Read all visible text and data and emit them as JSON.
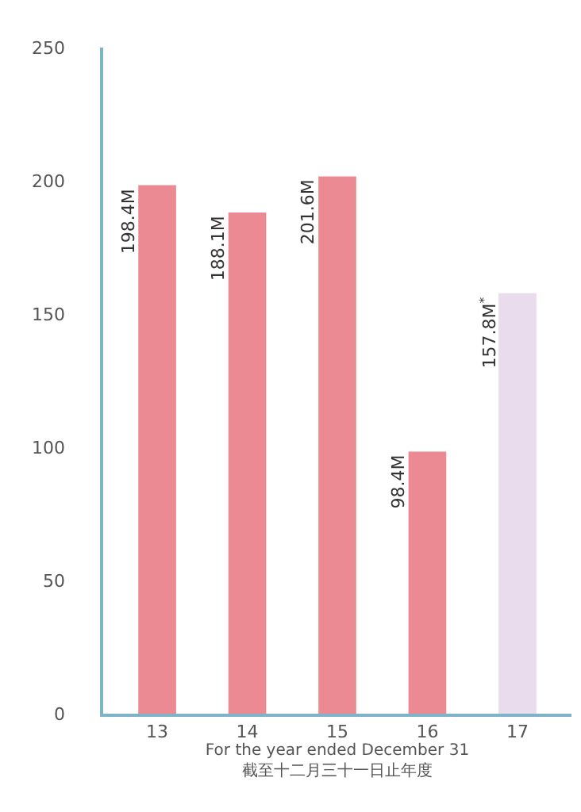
{
  "chart_data": {
    "type": "bar",
    "xlabel": "For the year ended December 31\n截至十二月三十一日止年度",
    "categories": [
      "13",
      "14",
      "15",
      "16",
      "17"
    ],
    "values": [
      198.4,
      188.1,
      201.6,
      98.4,
      157.8
    ],
    "colors": [
      "#eb8a92",
      "#eb8a92",
      "#eb8a92",
      "#eb8a92",
      "#e9dcec"
    ],
    "value_labels": [
      "198.4M",
      "188.1M",
      "201.6M",
      "98.4M",
      "157.8M$^{*}$"
    ],
    "ylim": [
      0,
      250
    ],
    "yticks": [
      0,
      50,
      100,
      150,
      200,
      250
    ],
    "grid": false,
    "legend": false
  }
}
